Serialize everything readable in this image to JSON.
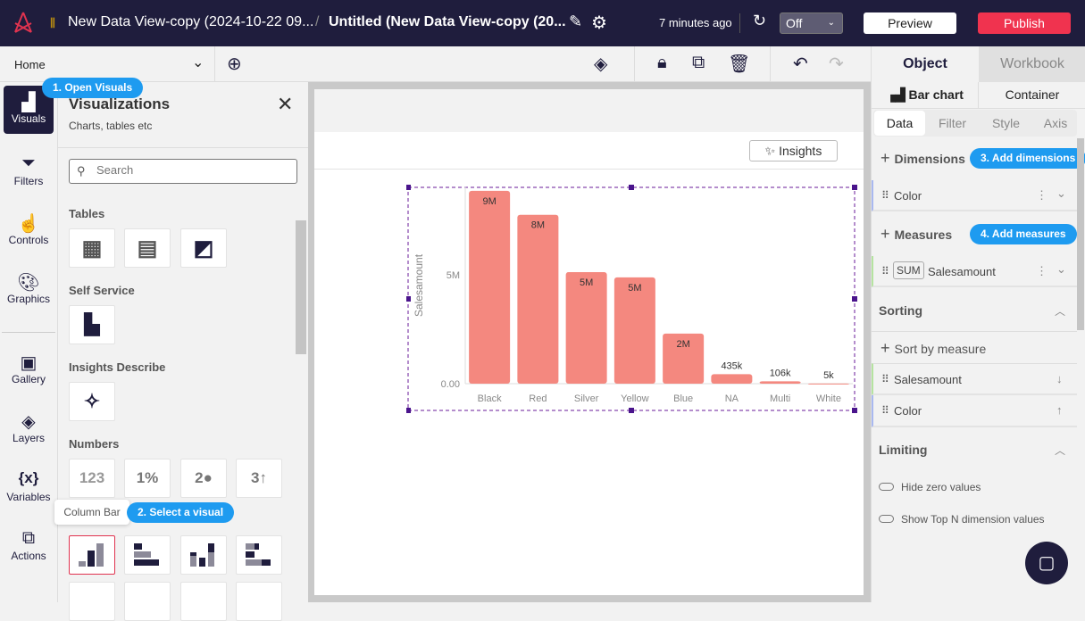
{
  "header": {
    "breadcrumb_dataset": "New Data View-copy (2024-10-22 09...",
    "separator": "/",
    "title": "Untitled (New Data View-copy (20...",
    "saved": "7 minutes ago",
    "refresh_select": "Off",
    "preview": "Preview",
    "publish": "Publish",
    "accent": "#f0334f",
    "bg": "#1f1d3d"
  },
  "toolbar": {
    "page_select": "Home"
  },
  "rail": {
    "items": [
      {
        "label": "Visuals"
      },
      {
        "label": "Filters"
      },
      {
        "label": "Controls"
      },
      {
        "label": "Graphics"
      },
      {
        "label": "Gallery"
      },
      {
        "label": "Layers"
      },
      {
        "label": "Variables"
      },
      {
        "label": "Actions"
      }
    ]
  },
  "panel": {
    "title": "Visualizations",
    "subtitle": "Charts, tables etc",
    "search_placeholder": "Search",
    "sections": {
      "tables": "Tables",
      "self_service": "Self Service",
      "insights": "Insights Describe",
      "numbers": "Numbers"
    },
    "number_tiles": [
      "123",
      "1%",
      "2●",
      "3↑"
    ],
    "tooltip": "Column Bar"
  },
  "guides": {
    "step1": "1. Open Visuals",
    "step2": "2. Select a visual",
    "step3": "3. Add dimensions",
    "step4": "4. Add measures",
    "color": "#1e9bf0"
  },
  "canvas": {
    "insights_button": "Insights"
  },
  "chart_data": {
    "type": "bar",
    "categories": [
      "Black",
      "Red",
      "Silver",
      "Yellow",
      "Blue",
      "NA",
      "Multi",
      "White"
    ],
    "values": [
      8850000,
      7750000,
      5120000,
      4880000,
      2300000,
      435000,
      106000,
      5000
    ],
    "data_labels": [
      "9M",
      "8M",
      "5M",
      "5M",
      "2M",
      "435k",
      "106k",
      "5k"
    ],
    "ylabel": "Salesamount",
    "yticks": [
      "0.00",
      "5M"
    ],
    "ylim": [
      0,
      9500000
    ],
    "bar_color": "#f4887f",
    "grid": false
  },
  "right": {
    "tabs": [
      "Object",
      "Workbook"
    ],
    "subtabs": [
      "Bar chart",
      "Container"
    ],
    "data_tabs": [
      "Data",
      "Filter",
      "Style",
      "Axis"
    ],
    "dimensions_label": "Dimensions",
    "dimension_item": "Color",
    "measures_label": "Measures",
    "measure_agg": "SUM",
    "measure_item": "Salesamount",
    "sorting_label": "Sorting",
    "sort_by_measure": "Sort by measure",
    "sort_items": [
      "Salesamount",
      "Color"
    ],
    "limiting_label": "Limiting",
    "toggles": [
      "Hide zero values",
      "Show Top N dimension values"
    ]
  }
}
